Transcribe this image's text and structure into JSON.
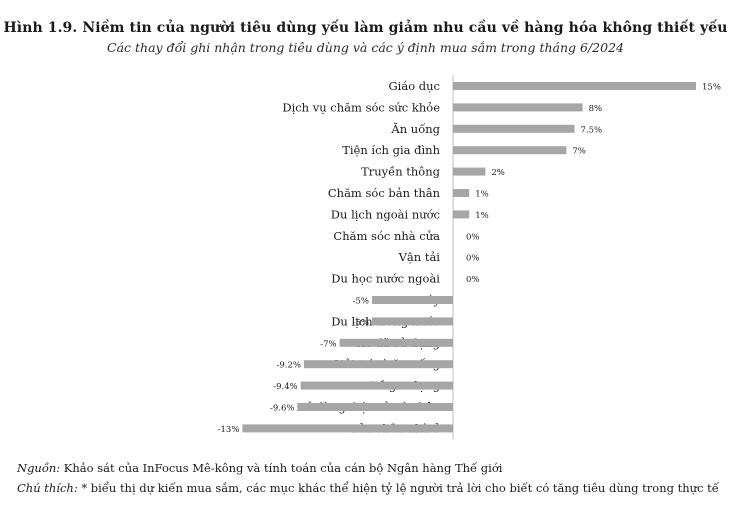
{
  "header": {
    "title": "Hình 1.9. Niềm tin của người tiêu dùng yếu làm giảm nhu cầu về hàng hóa không thiết yếu",
    "subtitle": "Các thay đổi ghi nhận trong tiêu dùng và các ý định mua sắm trong tháng 6/2024"
  },
  "chart_data": {
    "type": "bar",
    "orientation": "horizontal",
    "title": "Hình 1.9. Niềm tin của người tiêu dùng yếu làm giảm nhu cầu về hàng hóa không thiết yếu",
    "subtitle": "Các thay đổi ghi nhận trong tiêu dùng và các ý định mua sắm trong tháng 6/2024",
    "categories": [
      "Giáo dục",
      "Dịch vụ chăm sóc sức khỏe",
      "Ăn uống",
      "Tiện ích gia đình",
      "Truyền thông",
      "Chăm sóc bản thân",
      "Du lịch ngoài nước",
      "Chăm sóc nhà cửa",
      "Vận tải",
      "Du học nước ngoài",
      "Xe máy",
      "Du lịch trong nước",
      "Xe đã sử dụng",
      "Giải trí và ăn uống",
      "Đồ gia dụng",
      "Đồ dùng điện tử cá nhân",
      "Sửa chữa nhà ở"
    ],
    "values": [
      15,
      8,
      7.5,
      7,
      2,
      1,
      1,
      0,
      0,
      0,
      -5,
      -5,
      -7,
      -9.2,
      -9.4,
      -9.6,
      -13
    ],
    "value_labels": [
      "15%",
      "8%",
      "7.5%",
      "7%",
      "2%",
      "1%",
      "1%",
      "0%",
      "0%",
      "0%",
      "-5%",
      "-5%",
      "-7%",
      "-9.2%",
      "-9.4%",
      "-9.6%",
      "-13%"
    ],
    "xlim": [
      -13,
      15
    ],
    "bar_color": "#a6a6a6",
    "axis_color": "#bfbfbf",
    "grid": false,
    "legend": "none"
  },
  "footer": {
    "source_lead": "Nguồn:",
    "source_text": " Khảo sát của InFocus Mê-kông và tính toán của cán bộ Ngân hàng Thế giới",
    "note_lead": "Chú thích:",
    "note_text": " * biểu thị dự kiến mua sắm, các mục khác thể hiện tỷ lệ người trả lời cho biết có tăng tiêu dùng trong thực tế"
  }
}
